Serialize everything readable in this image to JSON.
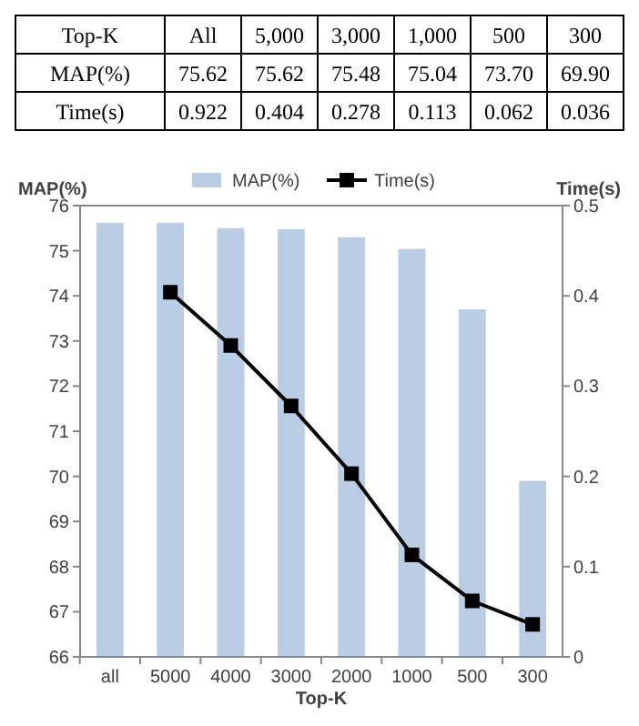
{
  "chart_data": [
    {
      "type": "other",
      "xlabel": "Top-K",
      "categories": [
        "All",
        "5,000",
        "3,000",
        "1,000",
        "500",
        "300"
      ],
      "series": [
        {
          "name": "MAP(%)",
          "values": [
            75.62,
            75.62,
            75.48,
            75.04,
            73.7,
            69.9
          ],
          "value_labels": [
            "75.62",
            "75.62",
            "75.48",
            "75.04",
            "73.70",
            "69.90"
          ]
        },
        {
          "name": "Time(s)",
          "values": [
            0.922,
            0.404,
            0.278,
            0.113,
            0.062,
            0.036
          ],
          "value_labels": [
            "0.922",
            "0.404",
            "0.278",
            "0.113",
            "0.062",
            "0.036"
          ]
        }
      ]
    },
    {
      "type": "bar",
      "xlabel": "Top-K",
      "ylabel": "MAP(%)",
      "y2label": "Time(s)",
      "categories": [
        "all",
        "5000",
        "4000",
        "3000",
        "2000",
        "1000",
        "500",
        "300"
      ],
      "ylim": [
        66,
        76
      ],
      "yticks": [
        66,
        67,
        68,
        69,
        70,
        71,
        72,
        73,
        74,
        75,
        76
      ],
      "y2lim": [
        0,
        0.5
      ],
      "y2ticks": [
        0,
        0.1,
        0.2,
        0.3,
        0.4,
        0.5
      ],
      "legend": "top",
      "grid": false,
      "series": [
        {
          "name": "MAP(%)",
          "type": "bar",
          "color": "#b9cde5",
          "values": [
            75.62,
            75.62,
            75.5,
            75.48,
            75.3,
            75.04,
            73.7,
            69.9
          ]
        },
        {
          "name": "Time(s)",
          "type": "line",
          "axis": "y2",
          "color": "#000000",
          "marker": "square",
          "line_style": "solid",
          "values": [
            null,
            0.404,
            0.345,
            0.278,
            0.203,
            0.113,
            0.062,
            0.036
          ]
        }
      ]
    }
  ]
}
